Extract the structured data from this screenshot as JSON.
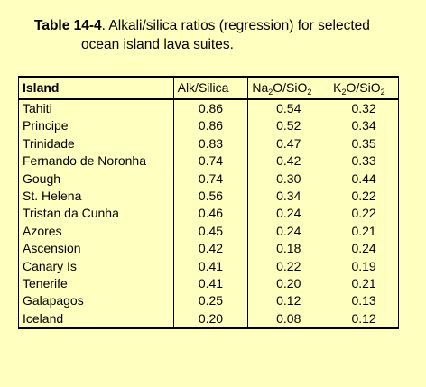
{
  "caption": {
    "table_number": "Table 14-4",
    "line1": ".  Alkali/silica ratios (regression) for selected",
    "line2": "ocean island lava suites."
  },
  "table": {
    "headers": {
      "island": "Island",
      "alk_silica": "Alk/Silica",
      "na2o_sio2": {
        "a": "Na",
        "a_sub": "2",
        "b": "O/SiO",
        "b_sub": "2"
      },
      "k2o_sio2": {
        "a": "K",
        "a_sub": "2",
        "b": "O/SiO",
        "b_sub": "2"
      }
    },
    "rows": [
      {
        "island": "Tahiti",
        "alk": "0.86",
        "na": "0.54",
        "k": "0.32"
      },
      {
        "island": "Principe",
        "alk": "0.86",
        "na": "0.52",
        "k": "0.34"
      },
      {
        "island": "Trinidade",
        "alk": "0.83",
        "na": "0.47",
        "k": "0.35"
      },
      {
        "island": "Fernando de Noronha",
        "alk": "0.74",
        "na": "0.42",
        "k": "0.33"
      },
      {
        "island": "Gough",
        "alk": "0.74",
        "na": "0.30",
        "k": "0.44"
      },
      {
        "island": "St. Helena",
        "alk": "0.56",
        "na": "0.34",
        "k": "0.22"
      },
      {
        "island": "Tristan da Cunha",
        "alk": "0.46",
        "na": "0.24",
        "k": "0.22"
      },
      {
        "island": "Azores",
        "alk": "0.45",
        "na": "0.24",
        "k": "0.21"
      },
      {
        "island": "Ascension",
        "alk": "0.42",
        "na": "0.18",
        "k": "0.24"
      },
      {
        "island": "Canary Is",
        "alk": "0.41",
        "na": "0.22",
        "k": "0.19"
      },
      {
        "island": "Tenerife",
        "alk": "0.41",
        "na": "0.20",
        "k": "0.21"
      },
      {
        "island": "Galapagos",
        "alk": "0.25",
        "na": "0.12",
        "k": "0.13"
      },
      {
        "island": "Iceland",
        "alk": "0.20",
        "na": "0.08",
        "k": "0.12"
      }
    ]
  }
}
